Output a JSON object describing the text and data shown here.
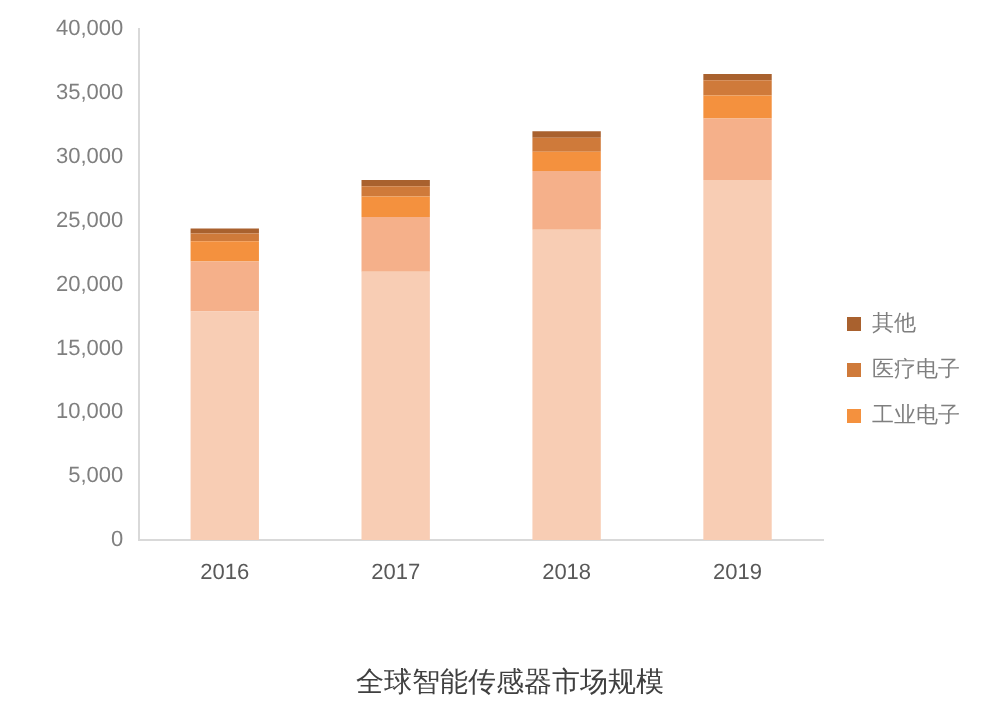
{
  "chart_data": {
    "type": "bar",
    "title": "全球智能传感器市场规模",
    "categories": [
      "2016",
      "2017",
      "2018",
      "2019"
    ],
    "stacked": true,
    "series": [
      {
        "color": "#f8cdb4",
        "values": [
          17900,
          21000,
          24300,
          28200
        ]
      },
      {
        "color": "#f5b08a",
        "values": [
          3900,
          4300,
          4600,
          4800
        ]
      },
      {
        "name": "工业电子",
        "color": "#f4913e",
        "values": [
          1600,
          1600,
          1500,
          1800
        ]
      },
      {
        "name": "医疗电子",
        "color": "#cf7a3a",
        "values": [
          600,
          800,
          1100,
          1200
        ]
      },
      {
        "name": "其他",
        "color": "#a9612e",
        "values": [
          400,
          500,
          500,
          500
        ]
      }
    ],
    "ylim": [
      0,
      40000
    ],
    "yticks": [
      {
        "value": 0,
        "label": "0"
      },
      {
        "value": 5000,
        "label": "5,000"
      },
      {
        "value": 10000,
        "label": "10,000"
      },
      {
        "value": 15000,
        "label": "15,000"
      },
      {
        "value": 20000,
        "label": "20,000"
      },
      {
        "value": 25000,
        "label": "25,000"
      },
      {
        "value": 30000,
        "label": "30,000"
      },
      {
        "value": 35000,
        "label": "35,000"
      },
      {
        "value": 40000,
        "label": "40,000"
      }
    ],
    "grid": false,
    "legend": "right"
  }
}
